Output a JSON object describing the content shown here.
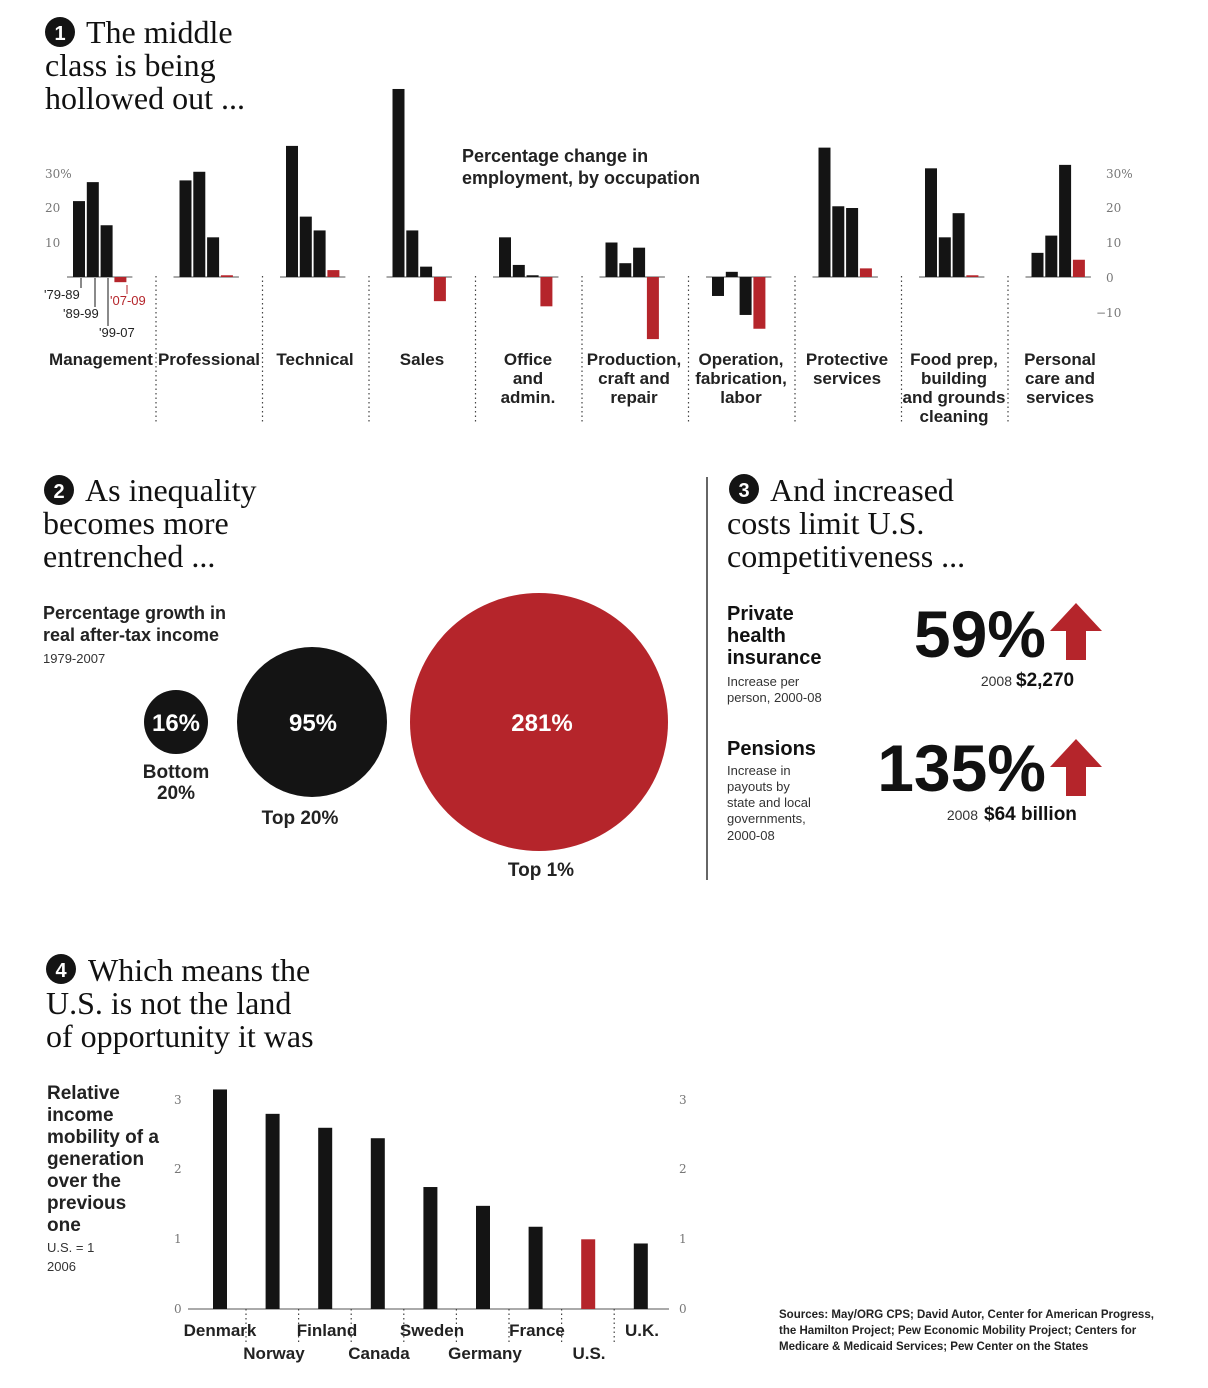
{
  "sections": {
    "s1": {
      "number": "1",
      "title_lines": [
        "The middle",
        "class is being",
        "hollowed out ..."
      ]
    },
    "s2": {
      "number": "2",
      "title_lines": [
        "As inequality",
        "becomes more",
        "entrenched ..."
      ]
    },
    "s3": {
      "number": "3",
      "title_lines": [
        "And increased",
        "costs limit U.S.",
        "competitiveness ..."
      ]
    },
    "s4": {
      "number": "4",
      "title_lines": [
        "Which means the",
        "U.S. is not the land",
        "of opportunity it was"
      ]
    }
  },
  "colors": {
    "black": "#141414",
    "red": "#b5252b",
    "grey": "#777777"
  },
  "chart_data": [
    {
      "type": "bar",
      "title": "Percentage change in employment, by occupation",
      "title_lines": [
        "Percentage change in",
        "employment, by occupation"
      ],
      "periods": [
        "'79-89",
        "'89-99",
        "'99-07",
        "'07-09"
      ],
      "period_colors": [
        "#141414",
        "#141414",
        "#141414",
        "#b5252b"
      ],
      "yticks_left": [
        "30%",
        "20",
        "10"
      ],
      "yticks_right": [
        "30%",
        "20",
        "10",
        "0",
        "−10"
      ],
      "ylim": [
        -12,
        55
      ],
      "categories": [
        {
          "label": [
            "Management"
          ],
          "values": [
            22,
            27.5,
            15,
            -1.5
          ]
        },
        {
          "label": [
            "Professional"
          ],
          "values": [
            28,
            30.5,
            11.5,
            0.5
          ]
        },
        {
          "label": [
            "Technical"
          ],
          "values": [
            38,
            17.5,
            13.5,
            2
          ]
        },
        {
          "label": [
            "Sales"
          ],
          "values": [
            54.5,
            13.5,
            3,
            -7
          ]
        },
        {
          "label": [
            "Office",
            "and",
            "admin."
          ],
          "values": [
            11.5,
            3.5,
            0.5,
            -8.5
          ]
        },
        {
          "label": [
            "Production,",
            "craft and",
            "repair"
          ],
          "values": [
            10,
            4,
            8.5,
            -18
          ]
        },
        {
          "label": [
            "Operation,",
            "fabrication,",
            "labor"
          ],
          "values": [
            -5.5,
            1.5,
            -11,
            -15
          ]
        },
        {
          "label": [
            "Protective",
            "services"
          ],
          "values": [
            37.5,
            20.5,
            20,
            2.5
          ]
        },
        {
          "label": [
            "Food prep,",
            "building",
            "and grounds",
            "cleaning"
          ],
          "values": [
            31.5,
            11.5,
            18.5,
            0.5
          ]
        },
        {
          "label": [
            "Personal",
            "care and",
            "services"
          ],
          "values": [
            7,
            12,
            32.5,
            5
          ]
        }
      ]
    },
    {
      "type": "bubble",
      "title_lines": [
        "Percentage growth in",
        "real after-tax income"
      ],
      "subtitle": "1979-2007",
      "items": [
        {
          "label": [
            "Bottom",
            "20%"
          ],
          "value": 16,
          "value_label": "16%",
          "color": "#141414"
        },
        {
          "label": [
            "Top 20%"
          ],
          "value": 95,
          "value_label": "95%",
          "color": "#141414"
        },
        {
          "label": [
            "Top 1%"
          ],
          "value": 281,
          "value_label": "281%",
          "color": "#b5252b"
        }
      ]
    },
    {
      "type": "table",
      "items": [
        {
          "title_lines": [
            "Private",
            "health",
            "insurance"
          ],
          "note_lines": [
            "Increase per",
            "person, 2000-08"
          ],
          "big": "59%",
          "year": "2008",
          "amount": "$2,270"
        },
        {
          "title_lines": [
            "Pensions"
          ],
          "note_lines": [
            "Increase in",
            "payouts by",
            "state and local",
            "governments,",
            "2000-08"
          ],
          "big": "135%",
          "year": "2008",
          "amount": "$64 billion"
        }
      ]
    },
    {
      "type": "bar",
      "ylabel_lines": [
        "Relative",
        "income",
        "mobility of a",
        "generation",
        "over the",
        "previous",
        "one"
      ],
      "note_lines": [
        "U.S. = 1",
        "2006"
      ],
      "ylim": [
        0,
        3
      ],
      "yticks": [
        "0",
        "1",
        "2",
        "3"
      ],
      "categories": [
        "Denmark",
        "Norway",
        "Finland",
        "Canada",
        "Sweden",
        "Germany",
        "France",
        "U.S.",
        "U.K."
      ],
      "values": [
        3.15,
        2.8,
        2.6,
        2.45,
        1.75,
        1.48,
        1.18,
        1.0,
        0.94
      ],
      "highlight": "U.S."
    }
  ],
  "sources_lines": [
    "Sources: May/ORG CPS; David Autor, Center for American Progress,",
    "the Hamilton Project; Pew Economic Mobility Project; Centers for",
    "Medicare & Medicaid Services; Pew Center on the States"
  ]
}
